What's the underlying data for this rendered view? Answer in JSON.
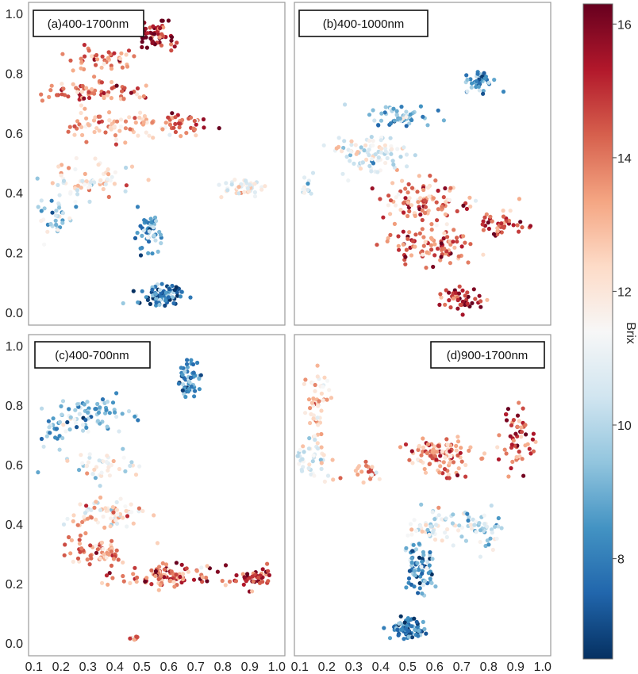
{
  "chart_data": {
    "type": "scatter",
    "colorbar": {
      "label": "Brix",
      "range": [
        6.5,
        16.3
      ],
      "ticks": [
        "8",
        "10",
        "12",
        "14",
        "16"
      ],
      "tick_values": [
        8,
        10,
        12,
        14,
        16
      ],
      "colormap": [
        "#053061",
        "#2166ac",
        "#4393c3",
        "#92c5de",
        "#d1e5f0",
        "#f7f7f7",
        "#fddbc7",
        "#f4a582",
        "#d6604d",
        "#b2182b",
        "#67001f"
      ]
    },
    "x_ticks": [
      "0.1",
      "0.2",
      "0.3",
      "0.4",
      "0.5",
      "0.6",
      "0.7",
      "0.8",
      "0.9",
      "1.0"
    ],
    "x_tick_values": [
      0.1,
      0.2,
      0.3,
      0.4,
      0.5,
      0.6,
      0.7,
      0.8,
      0.9,
      1.0
    ],
    "y_ticks": [
      "0.0",
      "0.2",
      "0.4",
      "0.6",
      "0.8",
      "1.0"
    ],
    "y_tick_values": [
      0,
      0.2,
      0.4,
      0.6,
      0.8,
      1.0
    ],
    "xlim": [
      0.08,
      1.03
    ],
    "ylim": [
      -0.04,
      1.04
    ],
    "panels": [
      {
        "label": "(a)400-1700nm",
        "clusters": [
          {
            "x": 0.55,
            "y": 0.93,
            "sx": 0.06,
            "sy": 0.04,
            "n": 55,
            "brix": 15.5
          },
          {
            "x": 0.36,
            "y": 0.85,
            "sx": 0.1,
            "sy": 0.03,
            "n": 45,
            "brix": 13.8
          },
          {
            "x": 0.32,
            "y": 0.74,
            "sx": 0.16,
            "sy": 0.03,
            "n": 70,
            "brix": 14.2
          },
          {
            "x": 0.4,
            "y": 0.63,
            "sx": 0.17,
            "sy": 0.04,
            "n": 80,
            "brix": 13.0
          },
          {
            "x": 0.64,
            "y": 0.64,
            "sx": 0.09,
            "sy": 0.03,
            "n": 35,
            "brix": 14.0
          },
          {
            "x": 0.3,
            "y": 0.44,
            "sx": 0.15,
            "sy": 0.05,
            "n": 70,
            "brix": 11.6
          },
          {
            "x": 0.18,
            "y": 0.32,
            "sx": 0.06,
            "sy": 0.05,
            "n": 35,
            "brix": 10.0
          },
          {
            "x": 0.52,
            "y": 0.27,
            "sx": 0.04,
            "sy": 0.05,
            "n": 50,
            "brix": 8.4
          },
          {
            "x": 0.57,
            "y": 0.06,
            "sx": 0.07,
            "sy": 0.03,
            "n": 85,
            "brix": 8.0
          },
          {
            "x": 0.88,
            "y": 0.42,
            "sx": 0.06,
            "sy": 0.03,
            "n": 40,
            "brix": 11.5
          }
        ]
      },
      {
        "label": "(b)400-1000nm",
        "clusters": [
          {
            "x": 0.77,
            "y": 0.78,
            "sx": 0.05,
            "sy": 0.03,
            "n": 45,
            "brix": 8.3
          },
          {
            "x": 0.47,
            "y": 0.66,
            "sx": 0.1,
            "sy": 0.03,
            "n": 55,
            "brix": 9.2
          },
          {
            "x": 0.37,
            "y": 0.53,
            "sx": 0.1,
            "sy": 0.06,
            "n": 90,
            "brix": 11.0
          },
          {
            "x": 0.13,
            "y": 0.42,
            "sx": 0.02,
            "sy": 0.03,
            "n": 12,
            "brix": 10.5
          },
          {
            "x": 0.55,
            "y": 0.37,
            "sx": 0.17,
            "sy": 0.06,
            "n": 110,
            "brix": 13.6
          },
          {
            "x": 0.58,
            "y": 0.22,
            "sx": 0.14,
            "sy": 0.05,
            "n": 90,
            "brix": 14.2
          },
          {
            "x": 0.85,
            "y": 0.3,
            "sx": 0.08,
            "sy": 0.03,
            "n": 40,
            "brix": 14.5
          },
          {
            "x": 0.7,
            "y": 0.05,
            "sx": 0.07,
            "sy": 0.03,
            "n": 45,
            "brix": 15.2
          }
        ]
      },
      {
        "label": "(c)400-700nm",
        "clusters": [
          {
            "x": 0.68,
            "y": 0.89,
            "sx": 0.04,
            "sy": 0.05,
            "n": 55,
            "brix": 8.4
          },
          {
            "x": 0.3,
            "y": 0.77,
            "sx": 0.12,
            "sy": 0.05,
            "n": 75,
            "brix": 9.5
          },
          {
            "x": 0.17,
            "y": 0.72,
            "sx": 0.05,
            "sy": 0.04,
            "n": 20,
            "brix": 9.0
          },
          {
            "x": 0.34,
            "y": 0.6,
            "sx": 0.12,
            "sy": 0.04,
            "n": 45,
            "brix": 11.0
          },
          {
            "x": 0.38,
            "y": 0.44,
            "sx": 0.11,
            "sy": 0.05,
            "n": 70,
            "brix": 12.2
          },
          {
            "x": 0.32,
            "y": 0.31,
            "sx": 0.12,
            "sy": 0.04,
            "n": 60,
            "brix": 13.6
          },
          {
            "x": 0.6,
            "y": 0.23,
            "sx": 0.18,
            "sy": 0.03,
            "n": 110,
            "brix": 14.2
          },
          {
            "x": 0.92,
            "y": 0.22,
            "sx": 0.05,
            "sy": 0.03,
            "n": 40,
            "brix": 15.0
          },
          {
            "x": 0.47,
            "y": 0.02,
            "sx": 0.02,
            "sy": 0.01,
            "n": 10,
            "brix": 13.5
          }
        ]
      },
      {
        "label": "(d)900-1700nm",
        "clusters": [
          {
            "x": 0.16,
            "y": 0.8,
            "sx": 0.04,
            "sy": 0.1,
            "n": 55,
            "brix": 12.5
          },
          {
            "x": 0.14,
            "y": 0.62,
            "sx": 0.06,
            "sy": 0.05,
            "n": 45,
            "brix": 11.0
          },
          {
            "x": 0.35,
            "y": 0.58,
            "sx": 0.06,
            "sy": 0.04,
            "n": 20,
            "brix": 13.5
          },
          {
            "x": 0.62,
            "y": 0.63,
            "sx": 0.1,
            "sy": 0.05,
            "n": 110,
            "brix": 13.5
          },
          {
            "x": 0.9,
            "y": 0.68,
            "sx": 0.05,
            "sy": 0.09,
            "n": 55,
            "brix": 14.6
          },
          {
            "x": 0.62,
            "y": 0.4,
            "sx": 0.1,
            "sy": 0.05,
            "n": 60,
            "brix": 11.0
          },
          {
            "x": 0.54,
            "y": 0.26,
            "sx": 0.05,
            "sy": 0.07,
            "n": 80,
            "brix": 8.8
          },
          {
            "x": 0.5,
            "y": 0.05,
            "sx": 0.05,
            "sy": 0.03,
            "n": 75,
            "brix": 8.0
          },
          {
            "x": 0.78,
            "y": 0.38,
            "sx": 0.06,
            "sy": 0.06,
            "n": 40,
            "brix": 10.5
          }
        ]
      }
    ]
  }
}
